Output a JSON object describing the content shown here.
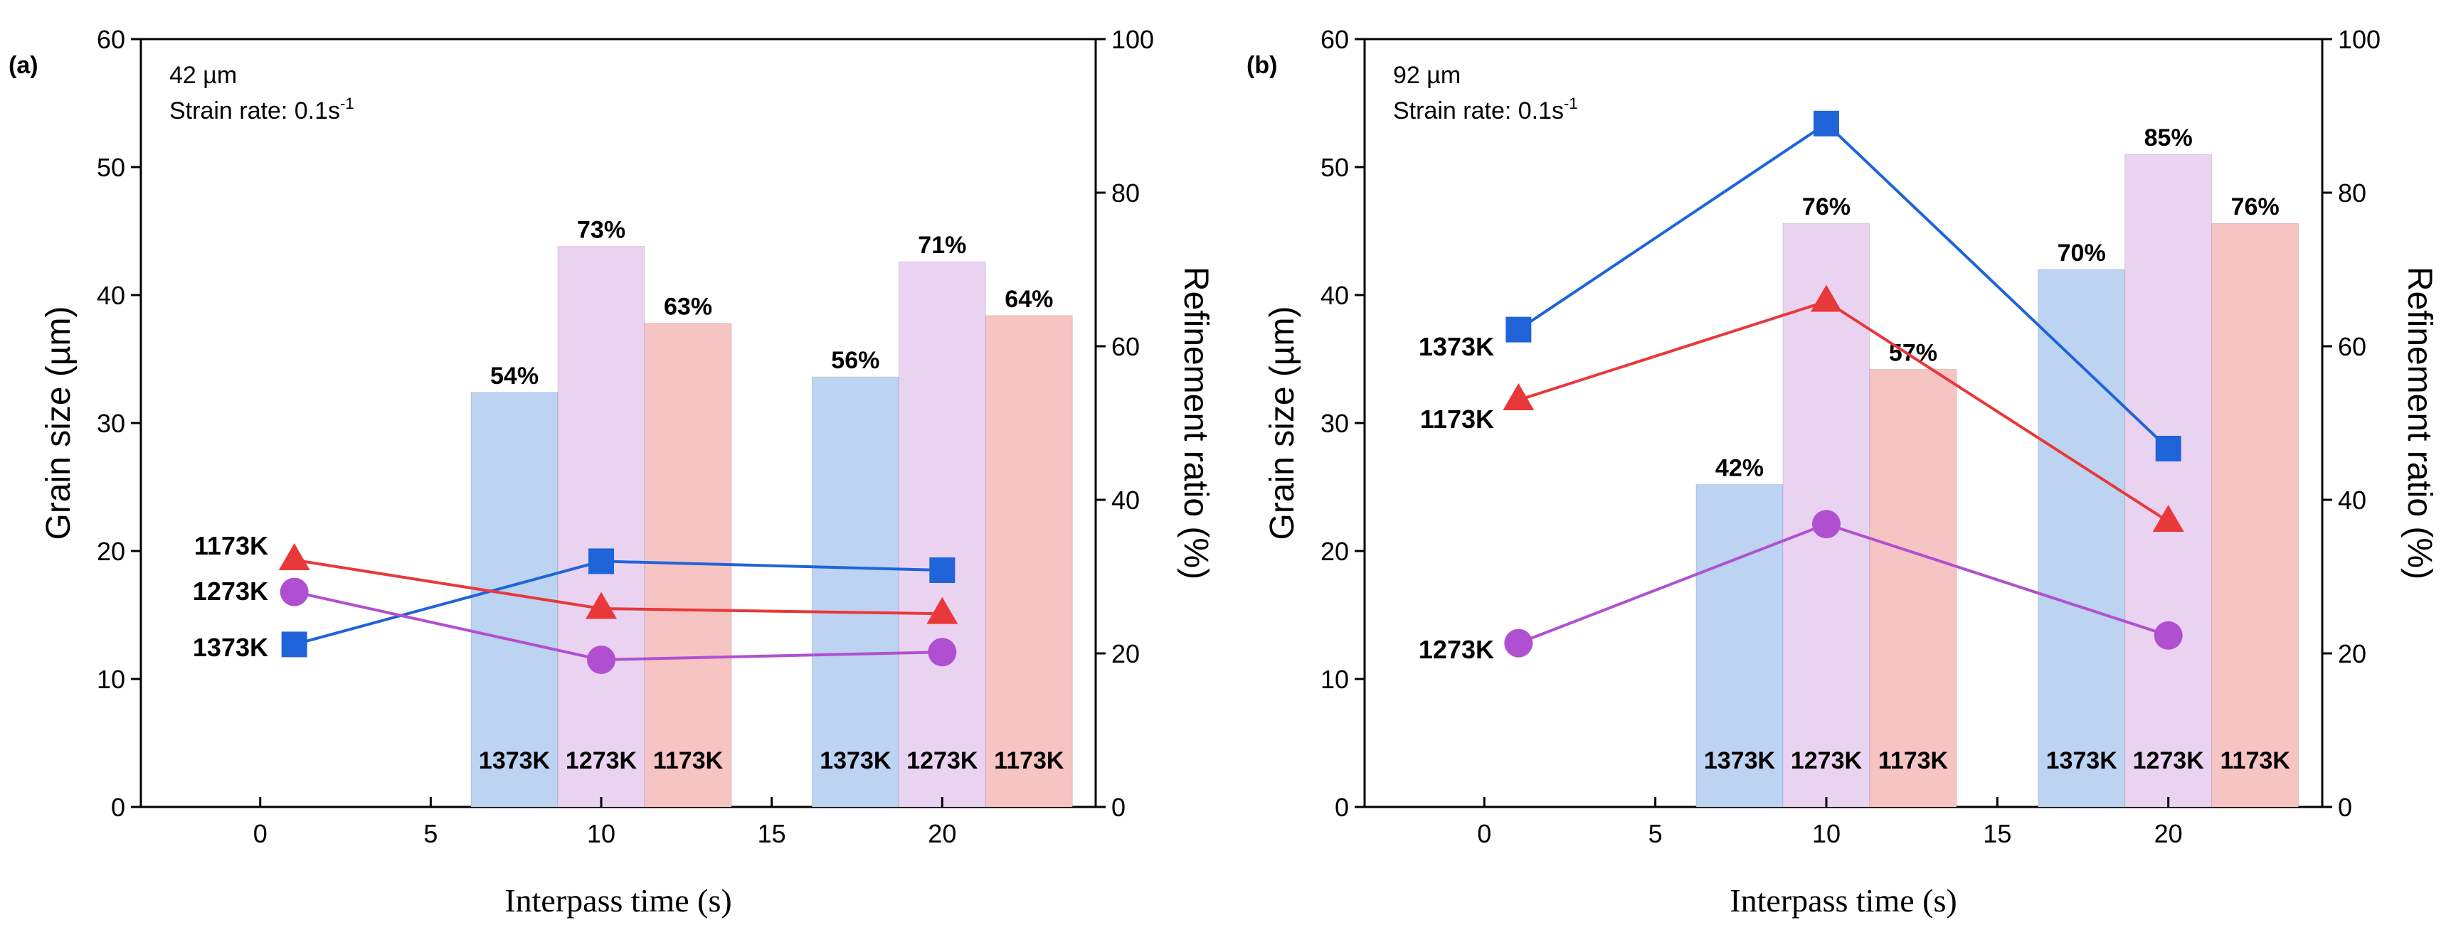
{
  "figure": {
    "colors": {
      "s1373": "#1f64d8",
      "s1273": "#b050d0",
      "s1173": "#e8383a",
      "bar1373": "#bcd3f1",
      "bar1273": "#ead3f1",
      "bar1173": "#f7c4c4"
    }
  },
  "chart_data": [
    {
      "type": "bar+line",
      "panel_label": "(a)",
      "annotation": {
        "line1": "42 µm",
        "line2_prefix": "Strain rate: 0.1s",
        "line2_sup": "-1"
      },
      "xlabel": "Interpass time (s)",
      "ylabel_left": "Grain size (µm)",
      "ylabel_right": "Refinement ratio (%)",
      "xlim": [
        -3.5,
        24.5
      ],
      "ylim_left": [
        0,
        60
      ],
      "ylim_right": [
        0,
        100
      ],
      "xticks": [
        0,
        5,
        10,
        15,
        20
      ],
      "yticks_left": [
        0,
        10,
        20,
        30,
        40,
        50,
        60
      ],
      "yticks_right": [
        0,
        20,
        40,
        60,
        80,
        100
      ],
      "bar_groups": [
        {
          "x": 10,
          "bars": [
            {
              "series": "1373K",
              "value": 54,
              "label": "54%",
              "cat_label": "1373K"
            },
            {
              "series": "1273K",
              "value": 73,
              "label": "73%",
              "cat_label": "1273K"
            },
            {
              "series": "1173K",
              "value": 63,
              "label": "63%",
              "cat_label": "1173K"
            }
          ]
        },
        {
          "x": 20,
          "bars": [
            {
              "series": "1373K",
              "value": 56,
              "label": "56%",
              "cat_label": "1373K"
            },
            {
              "series": "1273K",
              "value": 71,
              "label": "71%",
              "cat_label": "1273K"
            },
            {
              "series": "1173K",
              "value": 64,
              "label": "64%",
              "cat_label": "1173K"
            }
          ]
        }
      ],
      "line_series": [
        {
          "name": "1373K",
          "marker": "square",
          "x": [
            1,
            10,
            20
          ],
          "y": [
            12.7,
            19.2,
            18.5
          ]
        },
        {
          "name": "1273K",
          "marker": "circle",
          "x": [
            1,
            10,
            20
          ],
          "y": [
            16.8,
            11.5,
            12.1
          ]
        },
        {
          "name": "1173K",
          "marker": "triangle",
          "x": [
            1,
            10,
            20
          ],
          "y": [
            19.3,
            15.5,
            15.1
          ]
        }
      ],
      "series_labels": [
        {
          "text": "1173K",
          "series": "1173K"
        },
        {
          "text": "1273K",
          "series": "1273K"
        },
        {
          "text": "1373K",
          "series": "1373K"
        }
      ]
    },
    {
      "type": "bar+line",
      "panel_label": "(b)",
      "annotation": {
        "line1": "92 µm",
        "line2_prefix": "Strain rate: 0.1s",
        "line2_sup": "-1"
      },
      "xlabel": "Interpass time (s)",
      "ylabel_left": "Grain size (µm)",
      "ylabel_right": "Refinement ratio (%)",
      "xlim": [
        -3.5,
        24.5
      ],
      "ylim_left": [
        0,
        60
      ],
      "ylim_right": [
        0,
        100
      ],
      "xticks": [
        0,
        5,
        10,
        15,
        20
      ],
      "yticks_left": [
        0,
        10,
        20,
        30,
        40,
        50,
        60
      ],
      "yticks_right": [
        0,
        20,
        40,
        60,
        80,
        100
      ],
      "bar_groups": [
        {
          "x": 10,
          "bars": [
            {
              "series": "1373K",
              "value": 42,
              "label": "42%",
              "cat_label": "1373K"
            },
            {
              "series": "1273K",
              "value": 76,
              "label": "76%",
              "cat_label": "1273K"
            },
            {
              "series": "1173K",
              "value": 57,
              "label": "57%",
              "cat_label": "1173K"
            }
          ]
        },
        {
          "x": 20,
          "bars": [
            {
              "series": "1373K",
              "value": 70,
              "label": "70%",
              "cat_label": "1373K"
            },
            {
              "series": "1273K",
              "value": 85,
              "label": "85%",
              "cat_label": "1273K"
            },
            {
              "series": "1173K",
              "value": 76,
              "label": "76%",
              "cat_label": "1173K"
            }
          ]
        }
      ],
      "line_series": [
        {
          "name": "1373K",
          "marker": "square",
          "x": [
            1,
            10,
            20
          ],
          "y": [
            37.3,
            53.4,
            28.0
          ]
        },
        {
          "name": "1273K",
          "marker": "circle",
          "x": [
            1,
            10,
            20
          ],
          "y": [
            12.8,
            22.1,
            13.4
          ]
        },
        {
          "name": "1173K",
          "marker": "triangle",
          "x": [
            1,
            10,
            20
          ],
          "y": [
            31.8,
            39.5,
            22.3
          ]
        }
      ],
      "series_labels": [
        {
          "text": "1373K",
          "series": "1373K"
        },
        {
          "text": "1173K",
          "series": "1173K"
        },
        {
          "text": "1273K",
          "series": "1273K"
        }
      ]
    }
  ]
}
